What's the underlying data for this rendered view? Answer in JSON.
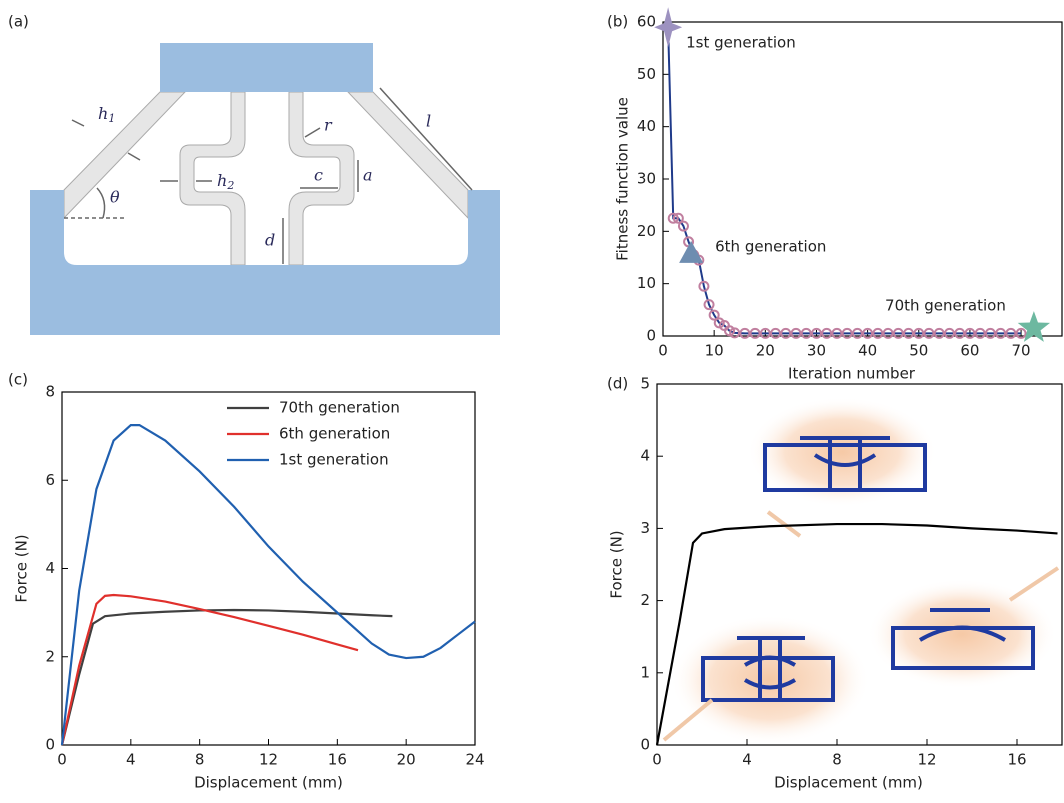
{
  "diagram": {
    "label": "(a)",
    "labels": [
      {
        "text": "h",
        "sub": "1"
      },
      {
        "text": "h",
        "sub": "2"
      },
      {
        "text": "r"
      },
      {
        "text": "l"
      },
      {
        "text": "θ"
      },
      {
        "text": "c"
      },
      {
        "text": "a"
      },
      {
        "text": "d"
      }
    ]
  },
  "chart_data": [
    {
      "type": "scatter",
      "label": "(b)",
      "x_label": "Iteration number",
      "y_label": "Fitness function value",
      "x": [
        1,
        2,
        3,
        4,
        5,
        6,
        7,
        8,
        9,
        10,
        11,
        12,
        13,
        14,
        16,
        18,
        20,
        22,
        24,
        26,
        28,
        30,
        32,
        34,
        36,
        38,
        40,
        42,
        44,
        46,
        48,
        50,
        52,
        54,
        56,
        58,
        60,
        62,
        64,
        66,
        68,
        70
      ],
      "values": [
        59,
        22.5,
        22.5,
        21,
        18,
        15.5,
        14.5,
        9.5,
        6,
        4,
        2.5,
        2,
        1,
        0.6,
        0.5,
        0.5,
        0.5,
        0.5,
        0.5,
        0.5,
        0.5,
        0.5,
        0.5,
        0.5,
        0.5,
        0.5,
        0.5,
        0.5,
        0.5,
        0.5,
        0.5,
        0.5,
        0.5,
        0.5,
        0.5,
        0.5,
        0.5,
        0.5,
        0.5,
        0.5,
        0.5,
        0.5
      ],
      "line_color": "#1f3a8a",
      "marker_color": "#c07f9f",
      "xlim": [
        0,
        78
      ],
      "ylim": [
        0,
        60
      ],
      "xticks": [
        0,
        10,
        20,
        30,
        40,
        50,
        60,
        70
      ],
      "yticks": [
        0,
        10,
        20,
        30,
        40,
        50,
        60
      ],
      "highlights": [
        {
          "x": 1,
          "value": 59,
          "marker": "sparkle",
          "color": "#9d92c0",
          "text": "1st generation"
        },
        {
          "x": 5.5,
          "value": 15.5,
          "marker": "triangle",
          "color": "#6e8db0",
          "text": "6th generation"
        },
        {
          "x": 72.5,
          "value": 1.5,
          "marker": "star",
          "color": "#6db8a0",
          "text": "70th generation"
        }
      ]
    },
    {
      "type": "line",
      "label": "(c)",
      "x_label": "Displacement (mm)",
      "y_label": "Force (N)",
      "xlim": [
        0,
        24
      ],
      "ylim": [
        0,
        8
      ],
      "xticks": [
        0,
        4,
        8,
        12,
        16,
        20,
        24
      ],
      "yticks": [
        0,
        2,
        4,
        6,
        8
      ],
      "legend": "upper right",
      "series": [
        {
          "name": "70th generation",
          "color": "#404040",
          "x": [
            0,
            1,
            1.8,
            2.5,
            4,
            6,
            8,
            10,
            12,
            14,
            16,
            18,
            19.2
          ],
          "values": [
            0,
            1.6,
            2.75,
            2.92,
            2.98,
            3.02,
            3.05,
            3.06,
            3.05,
            3.02,
            2.98,
            2.94,
            2.92
          ]
        },
        {
          "name": "6th generation",
          "color": "#e0302c",
          "x": [
            0,
            1,
            2,
            2.5,
            3,
            4,
            6,
            8,
            10,
            12,
            14,
            16,
            17.2
          ],
          "values": [
            0,
            1.8,
            3.2,
            3.38,
            3.4,
            3.37,
            3.25,
            3.08,
            2.9,
            2.7,
            2.5,
            2.28,
            2.15
          ]
        },
        {
          "name": "1st generation",
          "color": "#2060b0",
          "x": [
            0,
            1,
            2,
            3,
            4,
            4.5,
            6,
            8,
            10,
            12,
            14,
            16,
            18,
            19,
            20,
            21,
            22,
            23,
            24
          ],
          "values": [
            0,
            3.5,
            5.8,
            6.9,
            7.25,
            7.25,
            6.9,
            6.2,
            5.4,
            4.5,
            3.7,
            3.0,
            2.3,
            2.05,
            1.97,
            2.0,
            2.2,
            2.5,
            2.8
          ]
        }
      ]
    },
    {
      "type": "line",
      "label": "(d)",
      "x_label": "Displacement (mm)",
      "y_label": "Force (N)",
      "xlim": [
        0,
        18
      ],
      "ylim": [
        0,
        5
      ],
      "xticks": [
        0,
        4,
        8,
        12,
        16
      ],
      "yticks": [
        0,
        1,
        2,
        3,
        4,
        5
      ],
      "series": [
        {
          "color": "#000000",
          "x": [
            0,
            1,
            1.6,
            2,
            3,
            5,
            8,
            10,
            12,
            14,
            16,
            17.8
          ],
          "values": [
            0,
            1.7,
            2.8,
            2.93,
            2.99,
            3.03,
            3.06,
            3.06,
            3.04,
            3.0,
            2.97,
            2.93
          ]
        }
      ]
    }
  ]
}
